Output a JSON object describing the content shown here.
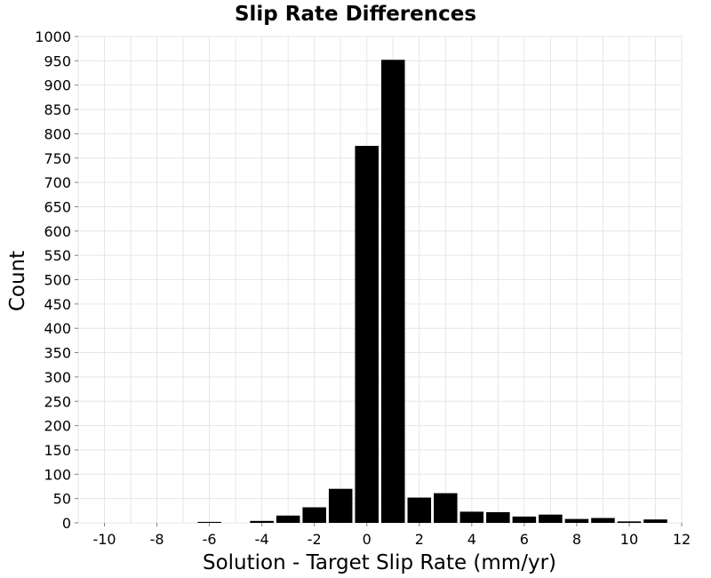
{
  "chart_data": {
    "type": "bar",
    "title": "Slip Rate Differences",
    "xlabel": "Solution - Target Slip Rate (mm/yr)",
    "ylabel": "Count",
    "xlim": [
      -11,
      12
    ],
    "ylim": [
      0,
      1000
    ],
    "bin_width": 1,
    "x_ticks": [
      -10,
      -8,
      -6,
      -4,
      -2,
      0,
      2,
      4,
      6,
      8,
      10,
      12
    ],
    "y_ticks": [
      0,
      50,
      100,
      150,
      200,
      250,
      300,
      350,
      400,
      450,
      500,
      550,
      600,
      650,
      700,
      750,
      800,
      850,
      900,
      950,
      1000
    ],
    "x_minor_grid": [
      -11,
      -9,
      -7,
      -5,
      -3,
      -1,
      1,
      3,
      5,
      7,
      9,
      11
    ],
    "grid": true,
    "bars": [
      {
        "x": -10,
        "value": 0
      },
      {
        "x": -9,
        "value": 0
      },
      {
        "x": -8,
        "value": 0
      },
      {
        "x": -7,
        "value": 0
      },
      {
        "x": -6,
        "value": 2
      },
      {
        "x": -5,
        "value": 0
      },
      {
        "x": -4,
        "value": 4
      },
      {
        "x": -3,
        "value": 15
      },
      {
        "x": -2,
        "value": 32
      },
      {
        "x": -1,
        "value": 70
      },
      {
        "x": 0,
        "value": 775
      },
      {
        "x": 1,
        "value": 952
      },
      {
        "x": 2,
        "value": 52
      },
      {
        "x": 3,
        "value": 61
      },
      {
        "x": 4,
        "value": 23
      },
      {
        "x": 5,
        "value": 22
      },
      {
        "x": 6,
        "value": 13
      },
      {
        "x": 7,
        "value": 17
      },
      {
        "x": 8,
        "value": 8
      },
      {
        "x": 9,
        "value": 10
      },
      {
        "x": 10,
        "value": 3
      },
      {
        "x": 11,
        "value": 7
      }
    ],
    "bar_color": "#000000"
  }
}
